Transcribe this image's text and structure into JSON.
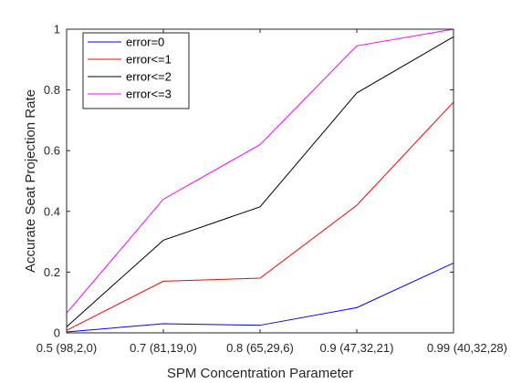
{
  "chart_data": {
    "type": "line",
    "categories": [
      "0.5 (98,2,0)",
      "0.7 (81,19,0)",
      "0.8 (65,29,6)",
      "0.9 (47,32,21)",
      "0.99 (40,32,28)"
    ],
    "series": [
      {
        "name": "error=0",
        "color": "#0000ff",
        "values": [
          0.003,
          0.03,
          0.025,
          0.083,
          0.23
        ]
      },
      {
        "name": "error<=1",
        "color": "#ff0000",
        "values": [
          0.008,
          0.17,
          0.18,
          0.42,
          0.76
        ]
      },
      {
        "name": "error<=2",
        "color": "#000000",
        "values": [
          0.02,
          0.305,
          0.415,
          0.79,
          0.975
        ]
      },
      {
        "name": "error<=3",
        "color": "#ff00ff",
        "values": [
          0.065,
          0.44,
          0.62,
          0.945,
          1.0
        ]
      }
    ],
    "xlabel": "SPM Concentration Parameter",
    "ylabel": "Accurate Seat Projection Rate",
    "ylim": [
      0,
      1
    ],
    "yticks": [
      "0",
      "0.2",
      "0.4",
      "0.6",
      "0.8",
      "1"
    ],
    "legend_position": "top-left",
    "grid": false
  }
}
